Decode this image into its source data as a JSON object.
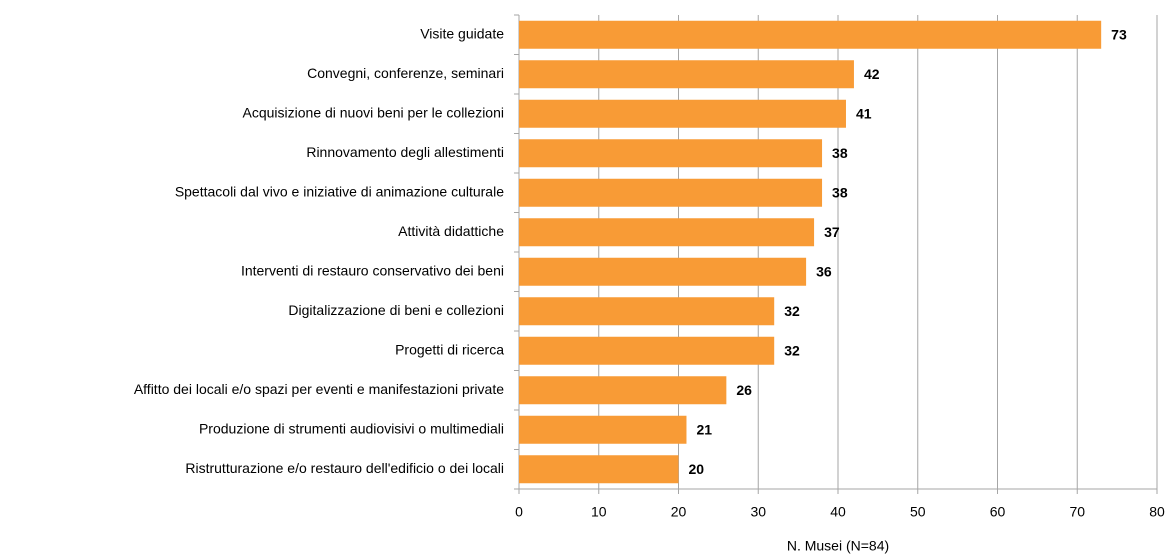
{
  "chart_data": {
    "type": "bar",
    "orientation": "horizontal",
    "categories": [
      "Visite guidate",
      "Convegni, conferenze, seminari",
      "Acquisizione di nuovi beni per le collezioni",
      "Rinnovamento degli allestimenti",
      "Spettacoli dal vivo e iniziative di animazione culturale",
      "Attività didattiche",
      "Interventi di restauro conservativo dei beni",
      "Digitalizzazione di beni e collezioni",
      "Progetti di ricerca",
      "Affitto dei locali e/o spazi per eventi e manifestazioni private",
      "Produzione di strumenti audiovisivi o multimediali",
      "Ristrutturazione e/o restauro dell'edificio o dei locali"
    ],
    "values": [
      73,
      42,
      41,
      38,
      38,
      37,
      36,
      32,
      32,
      26,
      21,
      20
    ],
    "color": "#f89b36",
    "xlabel": "N. Musei (N=84)",
    "xlim": [
      0,
      80
    ],
    "xticks": [
      0,
      10,
      20,
      30,
      40,
      50,
      60,
      70,
      80
    ],
    "grid": true
  }
}
